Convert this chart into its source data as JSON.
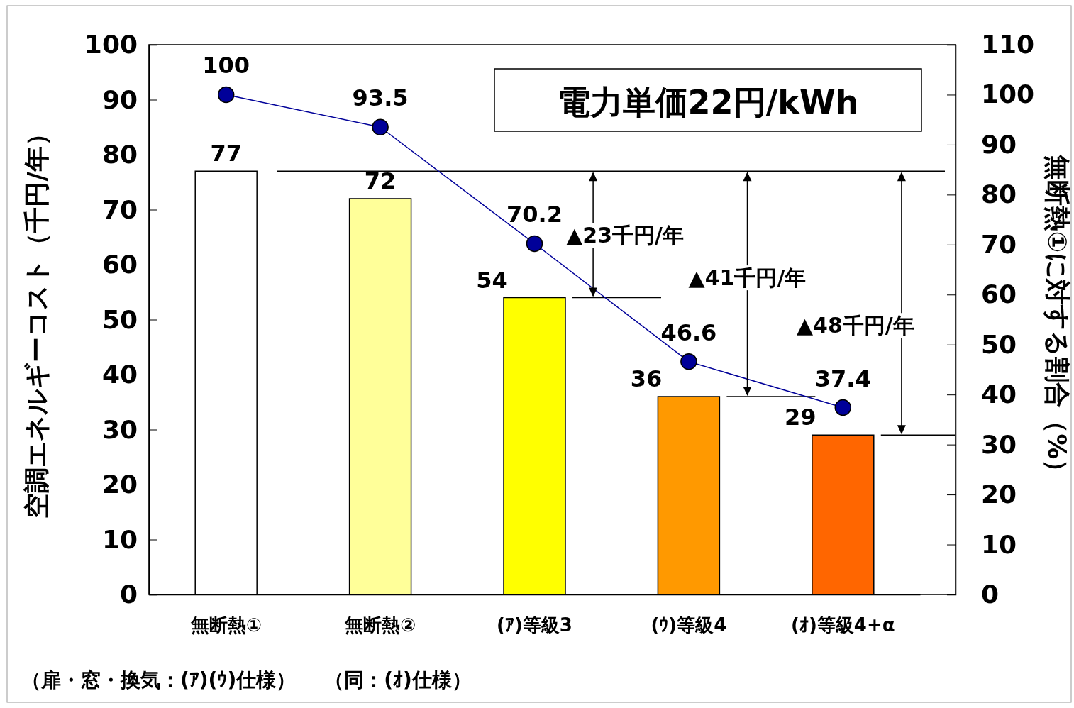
{
  "chart_data": {
    "type": "bar",
    "title": "電力単価22円/kWh",
    "categories": [
      "無断熱①",
      "無断熱②",
      "(ｱ)等級3",
      "(ｳ)等級4",
      "(ｵ)等級4+α"
    ],
    "series": [
      {
        "values": [
          77,
          72,
          54,
          36,
          29
        ],
        "colors": [
          "#ffffff",
          "#ffff99",
          "#ffff00",
          "#ff9900",
          "#ff6600"
        ]
      },
      {
        "type": "line",
        "axis": "y2",
        "color": "#000099",
        "values": [
          100,
          93.5,
          70.2,
          46.6,
          37.4
        ]
      }
    ],
    "ylabel": "空調エネルギーコスト（千円/年）",
    "y2label": "無断熱①に対する割合（%）",
    "ylim": [
      0,
      100
    ],
    "yticks": [
      0,
      10,
      20,
      30,
      40,
      50,
      60,
      70,
      80,
      90,
      100
    ],
    "y2lim": [
      0,
      110
    ],
    "y2ticks": [
      0,
      10,
      20,
      30,
      40,
      50,
      60,
      70,
      80,
      90,
      100,
      110
    ],
    "data_labels": true,
    "marker": "circle",
    "line_style": "solid",
    "grid": false,
    "ref_lines": [
      {
        "axis": "y",
        "value": 77,
        "color": "#000000"
      },
      {
        "axis": "y",
        "value": 54,
        "color": "#000000"
      },
      {
        "axis": "y",
        "value": 36,
        "color": "#000000"
      },
      {
        "axis": "y",
        "value": 29,
        "color": "#000000"
      }
    ],
    "annotations": [
      "▲23千円/年",
      "▲41千円/年",
      "▲48千円/年",
      "（扉・窓・換気：(ｱ)(ｳ)仕様）",
      "（同：(ｵ)仕様）"
    ]
  }
}
